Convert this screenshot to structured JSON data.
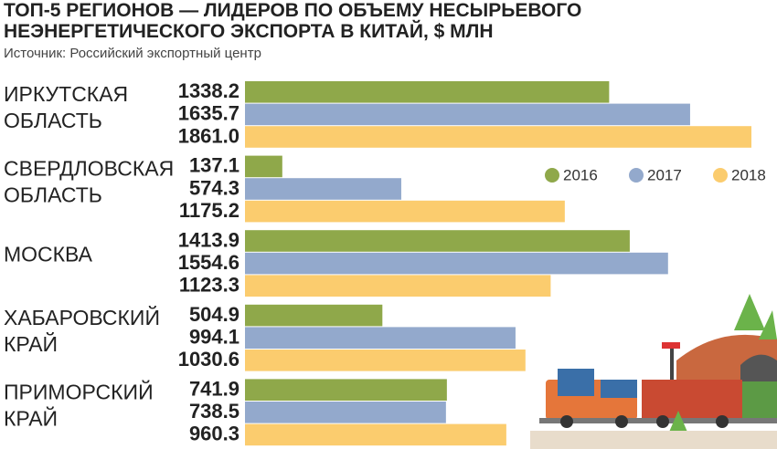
{
  "chart_data": {
    "type": "bar",
    "orientation": "horizontal",
    "title": "ТОП-5 РЕГИОНОВ — ЛИДЕРОВ ПО ОБЪЕМУ НЕСЫРЬЕВОГО НЕЭНЕРГЕТИЧЕСКОГО ЭКСПОРТА В КИТАЙ, $ МЛН",
    "source": "Источник: Российский экспортный центр",
    "categories": [
      "ИРКУТСКАЯ ОБЛАСТЬ",
      "СВЕРДЛОВСКАЯ ОБЛАСТЬ",
      "МОСКВА",
      "ХАБАРОВСКИЙ КРАЙ",
      "ПРИМОРСКИЙ КРАЙ"
    ],
    "series": [
      {
        "name": "2016",
        "color": "#8fa84a",
        "values": [
          1338.2,
          137.1,
          1413.9,
          504.9,
          741.9
        ],
        "value_labels": [
          "1338.2",
          "137.1",
          "1413.9",
          "504.9",
          "741.9"
        ]
      },
      {
        "name": "2017",
        "color": "#93a9cc",
        "values": [
          1635.7,
          574.3,
          1554.6,
          994.1,
          738.5
        ],
        "value_labels": [
          "1635.7",
          "574.3",
          "1554.6",
          "994.1",
          "738.5"
        ]
      },
      {
        "name": "2018",
        "color": "#fbcc6e",
        "values": [
          1861.0,
          1175.2,
          1123.3,
          1030.6,
          960.3
        ],
        "value_labels": [
          "1861.0",
          "1175.2",
          "1123.3",
          "1030.6",
          "960.3"
        ]
      }
    ]
  }
}
